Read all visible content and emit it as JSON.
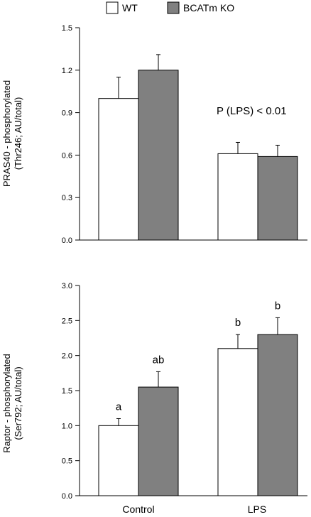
{
  "legend": {
    "items": [
      {
        "label": "WT",
        "color": "#ffffff"
      },
      {
        "label": "BCATm KO",
        "color": "#808080"
      }
    ]
  },
  "chart_data": [
    {
      "type": "bar",
      "categories": [
        "Control",
        "LPS"
      ],
      "series": [
        {
          "name": "WT",
          "color": "#ffffff",
          "values": [
            1.0,
            0.61
          ],
          "errors": [
            0.15,
            0.08
          ]
        },
        {
          "name": "BCATm KO",
          "color": "#808080",
          "values": [
            1.2,
            0.59
          ],
          "errors": [
            0.11,
            0.08
          ]
        }
      ],
      "ylabel_line1": "PRAS40 - phosphorylated",
      "ylabel_line2": "(Thr246; AU/total)",
      "ylim": [
        0,
        1.5
      ],
      "yticks": [
        "0.0",
        "0.3",
        "0.6",
        "0.9",
        "1.2",
        "1.5"
      ],
      "annotation": "P (LPS) < 0.01",
      "legend_position": "top"
    },
    {
      "type": "bar",
      "categories": [
        "Control",
        "LPS"
      ],
      "series": [
        {
          "name": "WT",
          "color": "#ffffff",
          "values": [
            1.0,
            2.1
          ],
          "errors": [
            0.1,
            0.2
          ],
          "labels": [
            "a",
            "b"
          ]
        },
        {
          "name": "BCATm KO",
          "color": "#808080",
          "values": [
            1.55,
            2.3
          ],
          "errors": [
            0.22,
            0.24
          ],
          "labels": [
            "ab",
            "b"
          ]
        }
      ],
      "ylabel_line1": "Raptor - phosphorylated",
      "ylabel_line2": "(Ser792; AU/total)",
      "ylim": [
        0,
        3.0
      ],
      "yticks": [
        "0.0",
        "0.5",
        "1.0",
        "1.5",
        "2.0",
        "2.5",
        "3.0"
      ]
    }
  ]
}
